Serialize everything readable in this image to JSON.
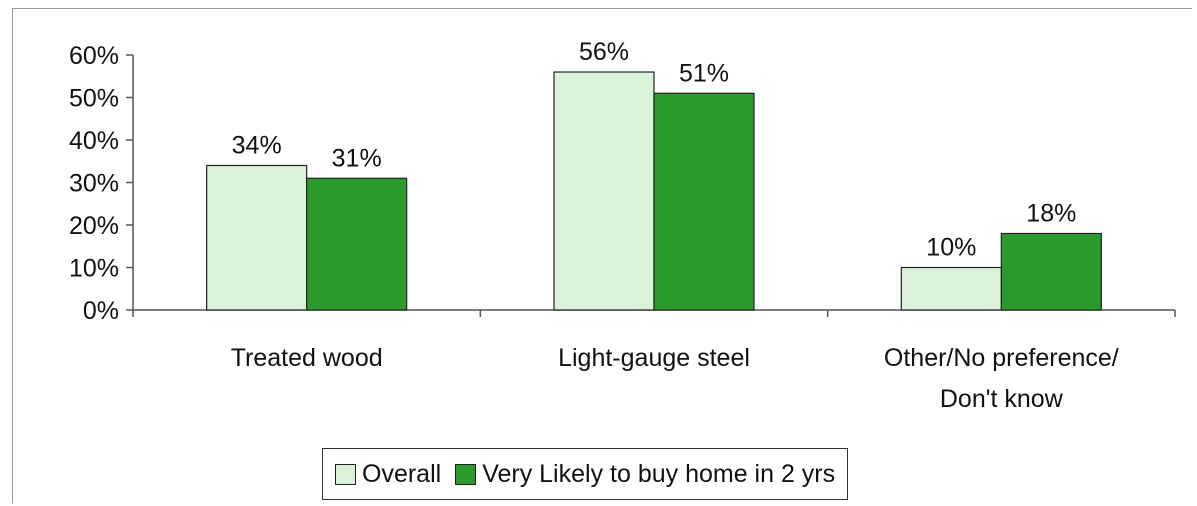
{
  "chart_data": {
    "type": "bar",
    "categories": [
      "Treated wood",
      "Light-gauge steel",
      "Other/No preference/ Don't know"
    ],
    "category_lines": [
      [
        "Treated wood"
      ],
      [
        "Light-gauge steel"
      ],
      [
        "Other/No preference/",
        "Don't know"
      ]
    ],
    "series": [
      {
        "name": "Overall",
        "values": [
          34,
          56,
          10
        ],
        "labels": [
          "34%",
          "56%",
          "10%"
        ],
        "color": "#d9f2d9"
      },
      {
        "name": "Very Likely to buy home in 2 yrs",
        "values": [
          31,
          51,
          18
        ],
        "labels": [
          "31%",
          "51%",
          "18%"
        ],
        "color": "#2a9a2a"
      }
    ],
    "y_ticks": [
      "0%",
      "10%",
      "20%",
      "30%",
      "40%",
      "50%",
      "60%"
    ],
    "ylim": [
      0,
      60
    ],
    "legend_position": "bottom",
    "grid": false
  }
}
